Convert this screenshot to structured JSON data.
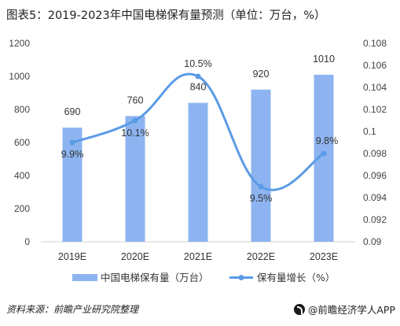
{
  "title": "图表5：2019-2023年中国电梯保有量预测（单位：万台，%）",
  "source": "资料来源：前瞻产业研究院整理",
  "brand": "@前瞻经济学人APP",
  "chart_data": {
    "type": "bar",
    "categories": [
      "2019E",
      "2020E",
      "2021E",
      "2022E",
      "2023E"
    ],
    "series": [
      {
        "name": "中国电梯保有量（万台）",
        "type": "bar",
        "axis": "left",
        "values": [
          690,
          760,
          840,
          920,
          1010
        ],
        "labels": [
          "690",
          "760",
          "840",
          "920",
          "1010"
        ]
      },
      {
        "name": "保有量增长（%）",
        "type": "line",
        "axis": "right",
        "values": [
          0.099,
          0.101,
          0.105,
          0.095,
          0.098
        ],
        "labels": [
          "9.9%",
          "10.1%",
          "10.5%",
          "9.5%",
          "9.8%"
        ]
      }
    ],
    "ylim_left": [
      0,
      1200
    ],
    "yticks_left": [
      "0",
      "200",
      "400",
      "600",
      "800",
      "1000",
      "1200"
    ],
    "ylim_right": [
      0.09,
      0.108
    ],
    "yticks_right": [
      "0.09",
      "0.092",
      "0.094",
      "0.096",
      "0.098",
      "0.1",
      "0.102",
      "0.104",
      "0.106",
      "0.108"
    ],
    "legend_position": "bottom",
    "colors": {
      "bar": "#8db4f0",
      "line": "#5b9be6"
    }
  }
}
